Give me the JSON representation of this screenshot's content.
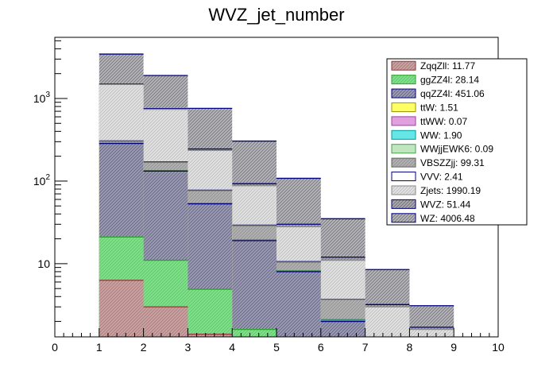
{
  "chart_data": {
    "type": "bar",
    "stacked": true,
    "title": "WVZ_jet_number",
    "xlabel": "",
    "ylabel": "",
    "xlim": [
      0,
      10
    ],
    "ylim": [
      1.3,
      5500
    ],
    "yscale": "log",
    "bin_edges": [
      0,
      1,
      2,
      3,
      4,
      5,
      6,
      7,
      8,
      9,
      10
    ],
    "x_ticks": [
      "0",
      "1",
      "2",
      "3",
      "4",
      "5",
      "6",
      "7",
      "8",
      "9",
      "10"
    ],
    "y_ticks": [
      {
        "value": 10,
        "base": "10",
        "exp": ""
      },
      {
        "value": 100,
        "base": "10",
        "exp": "2"
      },
      {
        "value": 1000,
        "base": "10",
        "exp": "3"
      }
    ],
    "legend_position": "top-right",
    "series": [
      {
        "name": "ZqqZll",
        "legend_label": "ZqqZll: 11.77",
        "fill": "#c9a0a0",
        "stroke": "#8b3a3a",
        "hatch": true,
        "cumulative": [
          0,
          6.3,
          3.0,
          1.4,
          0,
          0,
          0,
          0,
          0,
          0
        ]
      },
      {
        "name": "ggZZ4l",
        "legend_label": "ggZZ4l: 28.14",
        "fill": "#7ee08a",
        "stroke": "#2ca02c",
        "hatch": true,
        "cumulative": [
          0,
          21,
          11,
          4.9,
          1.6,
          0,
          0,
          0,
          0,
          0
        ]
      },
      {
        "name": "qqZZ4l",
        "legend_label": "qqZZ4l: 451.06",
        "fill": "#9a9ab0",
        "stroke": "#00007f",
        "hatch": true,
        "cumulative": [
          0,
          285,
          132,
          53,
          19,
          8,
          2,
          0,
          0,
          0
        ]
      },
      {
        "name": "ttW",
        "legend_label": "ttW: 1.51",
        "fill": "#ffff66",
        "stroke": "#999900",
        "hatch": false,
        "cumulative": [
          0,
          286,
          133,
          53.5,
          19.2,
          8.1,
          2.05,
          0,
          0,
          0
        ]
      },
      {
        "name": "ttWW",
        "legend_label": "ttWW: 0.07",
        "fill": "#e0a0e0",
        "stroke": "#a040a0",
        "hatch": false,
        "cumulative": [
          0,
          286,
          133,
          53.5,
          19.2,
          8.1,
          2.05,
          0,
          0,
          0
        ]
      },
      {
        "name": "WW",
        "legend_label": "WW: 1.90",
        "fill": "#66e6e6",
        "stroke": "#009999",
        "hatch": false,
        "cumulative": [
          0,
          287,
          134,
          54,
          19.4,
          8.2,
          2.1,
          0,
          0,
          0
        ]
      },
      {
        "name": "WWjjEWK6",
        "legend_label": "WWjjEWK6: 0.09",
        "fill": "#bfe6bf",
        "stroke": "#4c9f4c",
        "hatch": false,
        "cumulative": [
          0,
          287,
          134,
          54,
          19.4,
          8.2,
          2.1,
          0,
          0,
          0
        ]
      },
      {
        "name": "VBSZZjj",
        "legend_label": "VBSZZjj: 99.31",
        "fill": "#b0b0b0",
        "stroke": "#5f5f5f",
        "hatch": true,
        "cumulative": [
          0,
          305,
          170,
          77,
          29,
          10.5,
          3.7,
          1.0,
          0,
          0
        ]
      },
      {
        "name": "VVV",
        "legend_label": "VVV: 2.41",
        "fill": "#ffffff",
        "stroke": "#00007f",
        "hatch": false,
        "cumulative": [
          0,
          306,
          171,
          77.5,
          29.3,
          10.6,
          3.7,
          1.0,
          0,
          0
        ]
      },
      {
        "name": "Zjets",
        "legend_label": "Zjets: 1990.19",
        "fill": "#e0e0e0",
        "stroke": "#8a8a8a",
        "hatch": true,
        "cumulative": [
          0,
          1480,
          740,
          235,
          88,
          28,
          11,
          3.0,
          1.6,
          0
        ]
      },
      {
        "name": "WVZ",
        "legend_label": "WVZ: 51.44",
        "fill": "#a8a8a8",
        "stroke": "#00007f",
        "hatch": true,
        "cumulative": [
          0,
          1500,
          755,
          245,
          93,
          30,
          12,
          3.2,
          1.7,
          0
        ]
      },
      {
        "name": "WZ",
        "legend_label": "WZ: 4006.48",
        "fill": "#b3b3b3",
        "stroke": "#00007f",
        "hatch": true,
        "cumulative": [
          0,
          3450,
          1900,
          760,
          305,
          108,
          35,
          8.5,
          3.1,
          0
        ]
      }
    ]
  }
}
